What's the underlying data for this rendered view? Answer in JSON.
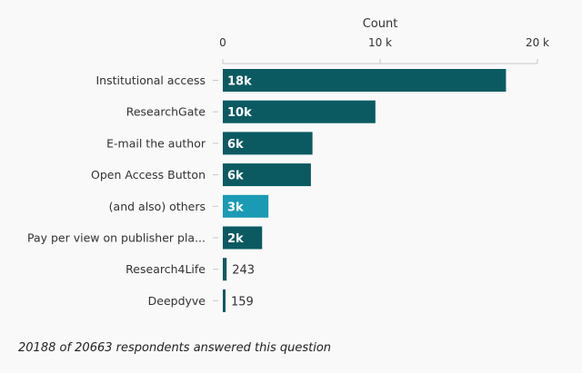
{
  "chart_data": {
    "type": "bar",
    "orientation": "horizontal",
    "title": "",
    "xlabel": "Count",
    "ylabel": "",
    "xlim": [
      0,
      20000
    ],
    "x_ticks": [
      {
        "value": 0,
        "label": "0"
      },
      {
        "value": 10000,
        "label": "10 k"
      },
      {
        "value": 20000,
        "label": "20 k"
      }
    ],
    "grid": false,
    "categories": [
      "Institutional access",
      "ResearchGate",
      "E-mail the author",
      "Open Access Button",
      "(and also) others",
      "Pay per view on publisher pla...",
      "Research4Life",
      "Deepdyve"
    ],
    "values": [
      18000,
      9700,
      5700,
      5600,
      2900,
      2500,
      243,
      159
    ],
    "value_labels": [
      "18k",
      "10k",
      "6k",
      "6k",
      "3k",
      "2k",
      "243",
      "159"
    ],
    "bar_colors": [
      "#0b5a62",
      "#0b5a62",
      "#0b5a62",
      "#0b5a62",
      "#1a9ab5",
      "#0b5a62",
      "#0b5a62",
      "#0b5a62"
    ]
  },
  "footnote": "20188 of 20663 respondents answered this question"
}
